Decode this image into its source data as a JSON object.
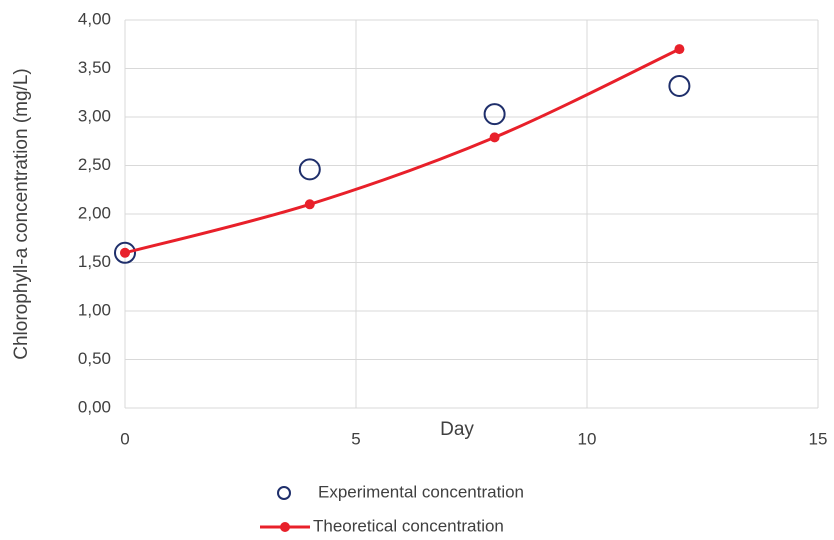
{
  "chart_data": {
    "type": "scatter",
    "x_label": "Day",
    "y_label": "Chlorophyll-a concentration (mg/L)",
    "x": [
      0,
      4,
      8,
      12
    ],
    "series": [
      {
        "name": "Experimental concentration",
        "color": "#1f2f6b",
        "marker": "open-circle",
        "line": "none",
        "values": [
          1.6,
          2.46,
          3.03,
          3.32
        ]
      },
      {
        "name": "Theoretical concentration",
        "color": "#e8202a",
        "marker": "filled-circle",
        "line": "smooth",
        "values": [
          1.6,
          2.1,
          2.79,
          3.7
        ]
      }
    ],
    "xlim": [
      0,
      15
    ],
    "xticks": [
      0,
      5,
      10,
      15
    ],
    "ylim": [
      0,
      4
    ],
    "yticks": [
      {
        "value": 0,
        "label": "0,00"
      },
      {
        "value": 0.5,
        "label": "0,50"
      },
      {
        "value": 1,
        "label": "1,00"
      },
      {
        "value": 1.5,
        "label": "1,50"
      },
      {
        "value": 2,
        "label": "2,00"
      },
      {
        "value": 2.5,
        "label": "2,50"
      },
      {
        "value": 3,
        "label": "3,00"
      },
      {
        "value": 3.5,
        "label": "3,50"
      },
      {
        "value": 4,
        "label": "4,00"
      }
    ],
    "grid": true,
    "legend": "bottom"
  }
}
